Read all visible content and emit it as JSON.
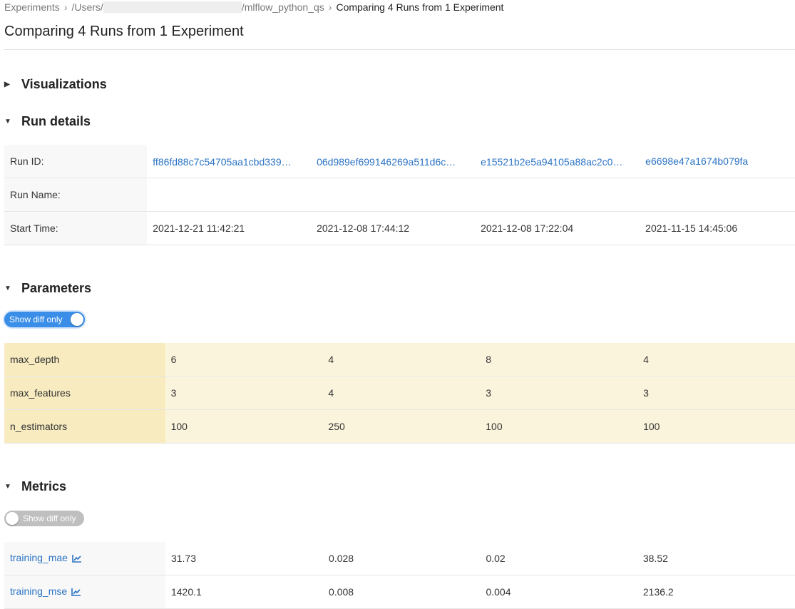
{
  "breadcrumb": {
    "items": [
      "Experiments",
      "/Users/",
      "/mlflow_python_qs",
      "Comparing 4 Runs from 1 Experiment"
    ]
  },
  "page_title": "Comparing 4 Runs from 1 Experiment",
  "sections": {
    "visualizations": {
      "label": "Visualizations",
      "expanded": false
    },
    "run_details": {
      "label": "Run details",
      "expanded": true
    },
    "parameters": {
      "label": "Parameters",
      "expanded": true,
      "toggle_label": "Show diff only",
      "toggle_on": true
    },
    "metrics": {
      "label": "Metrics",
      "expanded": true,
      "toggle_label": "Show diff only",
      "toggle_on": false
    }
  },
  "run_details": {
    "rows": [
      {
        "label": "Run ID:",
        "values": [
          "ff86fd88c7c54705aa1cbd339",
          "06d989ef699146269a511d6c",
          "e15521b2e5a94105a88ac2c0",
          "e6698e47a1674b079fa"
        ]
      },
      {
        "label": "Run Name:",
        "values": [
          "",
          "",
          "",
          ""
        ]
      },
      {
        "label": "Start Time:",
        "values": [
          "2021-12-21 11:42:21",
          "2021-12-08 17:44:12",
          "2021-12-08 17:22:04",
          "2021-11-15 14:45:06"
        ]
      }
    ]
  },
  "parameters": {
    "rows": [
      {
        "label": "max_depth",
        "values": [
          "6",
          "4",
          "8",
          "4"
        ]
      },
      {
        "label": "max_features",
        "values": [
          "3",
          "4",
          "3",
          "3"
        ]
      },
      {
        "label": "n_estimators",
        "values": [
          "100",
          "250",
          "100",
          "100"
        ]
      }
    ]
  },
  "metrics": {
    "rows": [
      {
        "label": "training_mae",
        "icon": "line-chart-icon",
        "values": [
          "31.73",
          "0.028",
          "0.02",
          "38.52"
        ]
      },
      {
        "label": "training_mse",
        "icon": "line-chart-icon",
        "values": [
          "1420.1",
          "0.008",
          "0.004",
          "2136.2"
        ]
      }
    ]
  },
  "colors": {
    "link": "#2b73c4",
    "toggle_on": "#3b8ee8",
    "toggle_off": "#bfbfbf",
    "diff_header": "#f8ebc0",
    "diff_cell": "#fbf4dc"
  }
}
